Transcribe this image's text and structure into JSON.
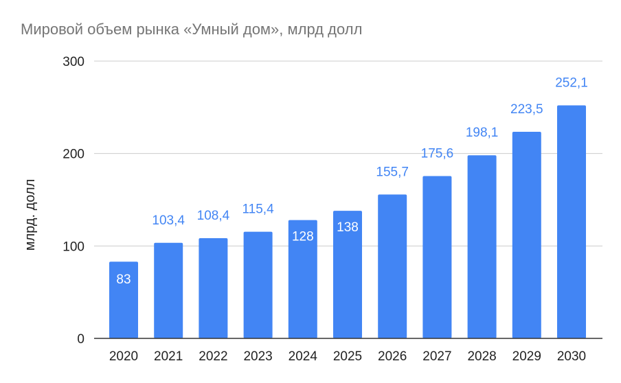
{
  "chart_data": {
    "type": "bar",
    "title": "Мировой объем рынка «Умный дом», млрд долл",
    "xlabel": "",
    "ylabel": "млрд. долл",
    "categories": [
      "2020",
      "2021",
      "2022",
      "2023",
      "2024",
      "2025",
      "2026",
      "2027",
      "2028",
      "2029",
      "2030"
    ],
    "values": [
      83,
      103.4,
      108.4,
      115.4,
      128,
      138,
      155.7,
      175.6,
      198.1,
      223.5,
      252.1
    ],
    "data_labels": [
      "83",
      "103,4",
      "108,4",
      "115,4",
      "128",
      "138",
      "155,7",
      "175,6",
      "198,1",
      "223,5",
      "252,1"
    ],
    "ylim": [
      0,
      300
    ],
    "yticks": [
      "0",
      "100",
      "200",
      "300"
    ],
    "grid": true,
    "bar_color": "#4285f4",
    "label_outside_color": "#4285f4",
    "label_inside_color": "#ffffff",
    "gridline_color": "#cccccc",
    "axis_color": "#333333"
  }
}
